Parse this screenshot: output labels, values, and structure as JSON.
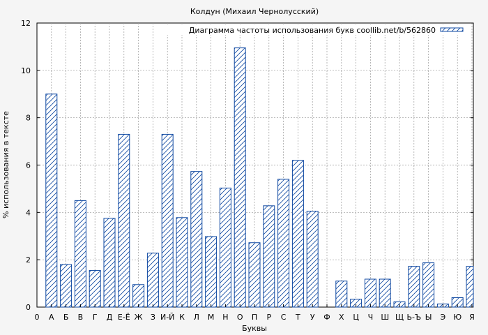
{
  "chart_data": {
    "type": "bar",
    "title": "Колдун (Михаил Чернолусский)",
    "xlabel": "Буквы",
    "ylabel": "% использования в тексте",
    "legend": "Диаграмма частоты использования букв coollib.net/b/562860",
    "legend_position": "top-right",
    "grid": true,
    "ylim": [
      0,
      12
    ],
    "yticks": [
      0,
      2,
      4,
      6,
      8,
      10,
      12
    ],
    "categories": [
      "0",
      "А",
      "Б",
      "В",
      "Г",
      "Д",
      "Е-Ё",
      "Ж",
      "З",
      "И-Й",
      "К",
      "Л",
      "М",
      "Н",
      "О",
      "П",
      "Р",
      "С",
      "Т",
      "У",
      "Ф",
      "Х",
      "Ц",
      "Ч",
      "Ш",
      "Щ",
      "Ь-Ъ",
      "Ы",
      "Э",
      "Ю",
      "Я"
    ],
    "values": [
      0,
      9.0,
      1.8,
      4.5,
      1.55,
      3.75,
      7.3,
      0.95,
      2.28,
      7.3,
      3.78,
      5.73,
      2.98,
      5.03,
      10.95,
      2.72,
      4.28,
      5.4,
      6.2,
      4.05,
      0,
      1.1,
      0.33,
      1.18,
      1.18,
      0.22,
      1.72,
      1.87,
      0.13,
      0.4,
      1.72
    ],
    "bar_color": "#0d47a1",
    "background": "#f5f5f5",
    "plot_background": "#ffffff"
  }
}
